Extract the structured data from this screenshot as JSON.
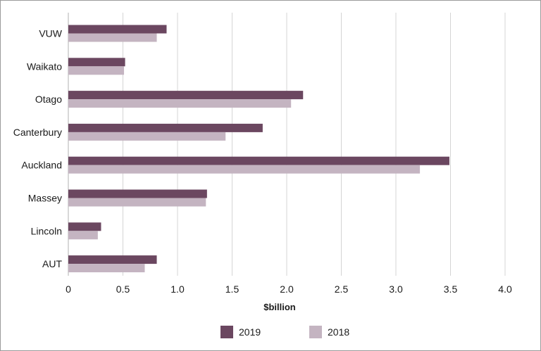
{
  "chart_data": {
    "type": "bar",
    "orientation": "horizontal",
    "title": "",
    "xlabel": "$billion",
    "ylabel": "",
    "categories": [
      "VUW",
      "Waikato",
      "Otago",
      "Canterbury",
      "Auckland",
      "Massey",
      "Lincoln",
      "AUT"
    ],
    "series": [
      {
        "name": "2019",
        "color": "#6b4760",
        "values": [
          0.9,
          0.52,
          2.15,
          1.78,
          3.49,
          1.27,
          0.3,
          0.81
        ]
      },
      {
        "name": "2018",
        "color": "#c4b4c1",
        "values": [
          0.81,
          0.51,
          2.04,
          1.44,
          3.22,
          1.26,
          0.27,
          0.7
        ]
      }
    ],
    "xlim": [
      0,
      4.0
    ],
    "xticks": [
      "0",
      "0.5",
      "1.0",
      "1.5",
      "2.0",
      "2.5",
      "3.0",
      "3.5",
      "4.0"
    ],
    "grid": true,
    "legend_position": "bottom"
  }
}
